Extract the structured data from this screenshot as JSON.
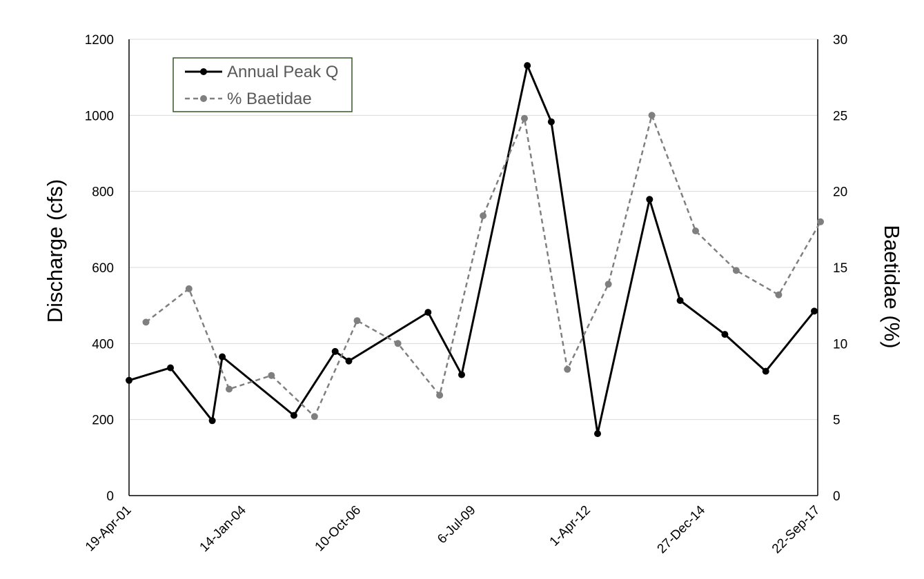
{
  "chart_data": {
    "type": "line",
    "title": "",
    "xlabel": "",
    "ylabel": "Discharge (cfs)",
    "y2label": "Baetidae (%)",
    "xlim": [
      "2001-04-19",
      "2017-09-22"
    ],
    "ylim": [
      0,
      1200
    ],
    "y2lim": [
      0,
      30
    ],
    "x_ticks": [
      {
        "date": "2001-04-19",
        "label": "19-Apr-01"
      },
      {
        "date": "2004-01-14",
        "label": "14-Jan-04"
      },
      {
        "date": "2006-10-10",
        "label": "10-Oct-06"
      },
      {
        "date": "2009-07-06",
        "label": "6-Jul-09"
      },
      {
        "date": "2012-04-01",
        "label": "1-Apr-12"
      },
      {
        "date": "2014-12-27",
        "label": "27-Dec-14"
      },
      {
        "date": "2017-09-22",
        "label": "22-Sep-17"
      }
    ],
    "y_ticks": [
      "0",
      "200",
      "400",
      "600",
      "800",
      "1000",
      "1200"
    ],
    "y2_ticks": [
      "0",
      "5",
      "10",
      "15",
      "20",
      "25",
      "30"
    ],
    "grid": true,
    "legend_position": "top-left",
    "series": [
      {
        "name": "Annual Peak Q",
        "axis": "left",
        "color": "#000000",
        "line_style": "solid",
        "points": [
          {
            "x": "2001-04-19",
            "y": 303
          },
          {
            "x": "2002-04-15",
            "y": 336
          },
          {
            "x": "2003-04-14",
            "y": 197
          },
          {
            "x": "2003-07-10",
            "y": 365
          },
          {
            "x": "2005-03-25",
            "y": 211
          },
          {
            "x": "2006-03-20",
            "y": 379
          },
          {
            "x": "2006-07-17",
            "y": 354
          },
          {
            "x": "2008-06-06",
            "y": 482
          },
          {
            "x": "2009-03-26",
            "y": 318
          },
          {
            "x": "2010-10-19",
            "y": 1131
          },
          {
            "x": "2011-05-16",
            "y": 983
          },
          {
            "x": "2012-06-22",
            "y": 163
          },
          {
            "x": "2013-09-18",
            "y": 779
          },
          {
            "x": "2014-06-11",
            "y": 513
          },
          {
            "x": "2015-07-06",
            "y": 424
          },
          {
            "x": "2016-06-26",
            "y": 327
          },
          {
            "x": "2017-08-23",
            "y": 485
          }
        ]
      },
      {
        "name": "% Baetidae",
        "axis": "right",
        "color": "#7f7f7f",
        "line_style": "dashed",
        "points": [
          {
            "x": "2001-09-13",
            "y": 11.4
          },
          {
            "x": "2002-09-23",
            "y": 13.6
          },
          {
            "x": "2003-09-08",
            "y": 7.0
          },
          {
            "x": "2004-09-10",
            "y": 7.9
          },
          {
            "x": "2005-09-21",
            "y": 5.2
          },
          {
            "x": "2006-09-27",
            "y": 11.5
          },
          {
            "x": "2007-09-17",
            "y": 10.0
          },
          {
            "x": "2008-09-15",
            "y": 6.6
          },
          {
            "x": "2009-09-29",
            "y": 18.4
          },
          {
            "x": "2010-09-24",
            "y": 24.8
          },
          {
            "x": "2011-10-03",
            "y": 8.3
          },
          {
            "x": "2012-09-24",
            "y": 13.9
          },
          {
            "x": "2013-10-08",
            "y": 25.0
          },
          {
            "x": "2014-10-24",
            "y": 17.4
          },
          {
            "x": "2015-10-13",
            "y": 14.8
          },
          {
            "x": "2016-10-17",
            "y": 13.2
          },
          {
            "x": "2017-10-16",
            "y": 18.0
          }
        ]
      }
    ]
  }
}
